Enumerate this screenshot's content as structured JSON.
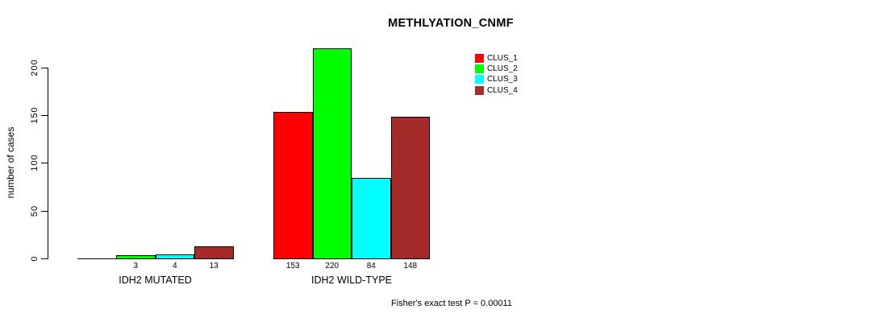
{
  "chart_data": {
    "type": "bar",
    "title": "METHLYATION_CNMF",
    "ylabel": "number of cases",
    "xlabel": "",
    "yticks": [
      0,
      50,
      100,
      150,
      200
    ],
    "ylim": [
      0,
      220
    ],
    "grid": false,
    "legend_position": "top-right",
    "categories": [
      "IDH2 MUTATED",
      "IDH2 WILD-TYPE"
    ],
    "series": [
      {
        "name": "CLUS_1",
        "color": "#FF0000",
        "values": [
          0,
          153
        ]
      },
      {
        "name": "CLUS_2",
        "color": "#00FF00",
        "values": [
          3,
          220
        ]
      },
      {
        "name": "CLUS_3",
        "color": "#00FFFF",
        "values": [
          4,
          84
        ]
      },
      {
        "name": "CLUS_4",
        "color": "#A52A2A",
        "values": [
          13,
          148
        ]
      }
    ],
    "bar_value_labels": [
      [
        "",
        "3",
        "4",
        "13"
      ],
      [
        "153",
        "220",
        "84",
        "148"
      ]
    ],
    "footer": "Fisher's exact test P = 0.00011"
  }
}
